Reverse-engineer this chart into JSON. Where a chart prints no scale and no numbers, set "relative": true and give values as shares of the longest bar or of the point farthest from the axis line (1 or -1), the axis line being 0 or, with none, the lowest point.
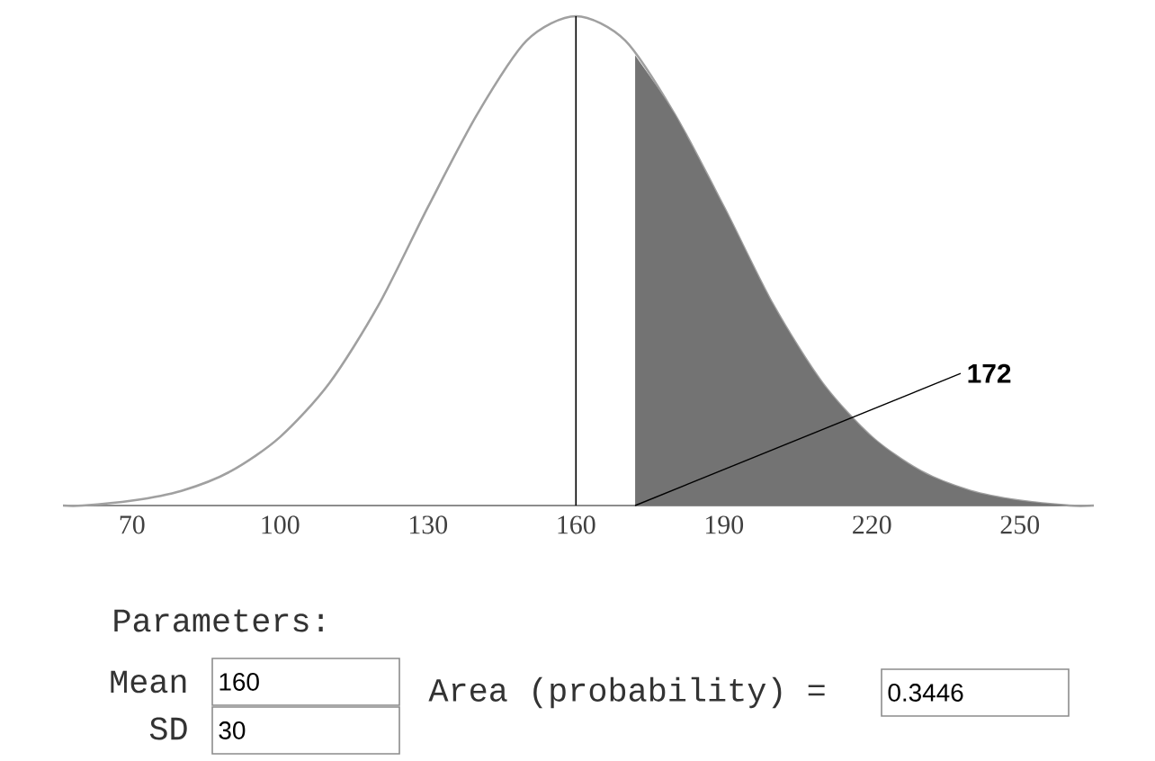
{
  "chart_data": {
    "type": "area",
    "relative": true,
    "xlim": [
      56,
      265
    ],
    "xticks": [
      70,
      100,
      130,
      160,
      190,
      220,
      250
    ],
    "series": [
      {
        "type": "line",
        "color": "#a0a0a0",
        "x": [
          56,
          60,
          70,
          80,
          90,
          100,
          110,
          120,
          130,
          140,
          150,
          160,
          170,
          180,
          190,
          200,
          210,
          220,
          230,
          240,
          250,
          260,
          265
        ],
        "values": [
          0.0,
          0.0,
          0.01,
          0.03,
          0.07,
          0.14,
          0.25,
          0.41,
          0.61,
          0.8,
          0.95,
          1,
          0.95,
          0.8,
          0.61,
          0.41,
          0.25,
          0.14,
          0.07,
          0.03,
          0.01,
          0.0,
          0.0
        ]
      },
      {
        "type": "area",
        "color": "#737373",
        "x": [
          172,
          180,
          190,
          200,
          210,
          220,
          230,
          240,
          250,
          260,
          265
        ],
        "values": [
          0.92,
          0.8,
          0.61,
          0.41,
          0.25,
          0.14,
          0.07,
          0.03,
          0.01,
          0.0,
          0.0
        ]
      }
    ],
    "ref_lines": [
      {
        "axis": "x",
        "value": 160,
        "color": "#000000"
      }
    ],
    "annotations": [
      {
        "text": "172",
        "x": 172,
        "y": 0
      },
      "Parameters:",
      "Mean",
      "160",
      "SD",
      "30",
      "Area (probability) =",
      "0.3446"
    ]
  }
}
